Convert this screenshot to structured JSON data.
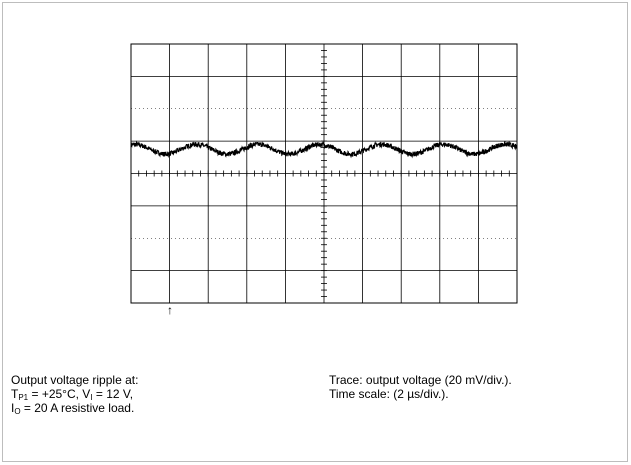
{
  "chart_data": {
    "type": "line",
    "title": "",
    "xlabel": "",
    "ylabel": "",
    "grid": true,
    "x_divisions": 10,
    "y_divisions": 8,
    "x_unit_per_div": "2 µs",
    "y_unit_per_div": "20 mV",
    "xlim": [
      0,
      20
    ],
    "ylim": [
      -80,
      80
    ],
    "series": [
      {
        "waveform": "sine with noise",
        "offset_mV": 15,
        "amplitude_mV": 3,
        "period_us": 3.2
      }
    ],
    "trigger_marker": "↑"
  },
  "caption": {
    "left_line1": "Output voltage ripple at:",
    "left_line2": {
      "t_main": "T",
      "t_sub": "P1",
      "t_rest": " = +25°C, V",
      "v_sub": "I",
      "v_rest": " =  12 V,"
    },
    "left_line3": {
      "i_main": "I",
      "i_sub": "O",
      "i_rest": " = 20 A resistive load."
    },
    "right_line1": "Trace: output voltage (20 mV/div.).",
    "right_line2": "Time scale: (2 µs/div.)."
  },
  "colors": {
    "grid": "#000000",
    "trace": "#000000",
    "frame": "#bdbdbd"
  }
}
